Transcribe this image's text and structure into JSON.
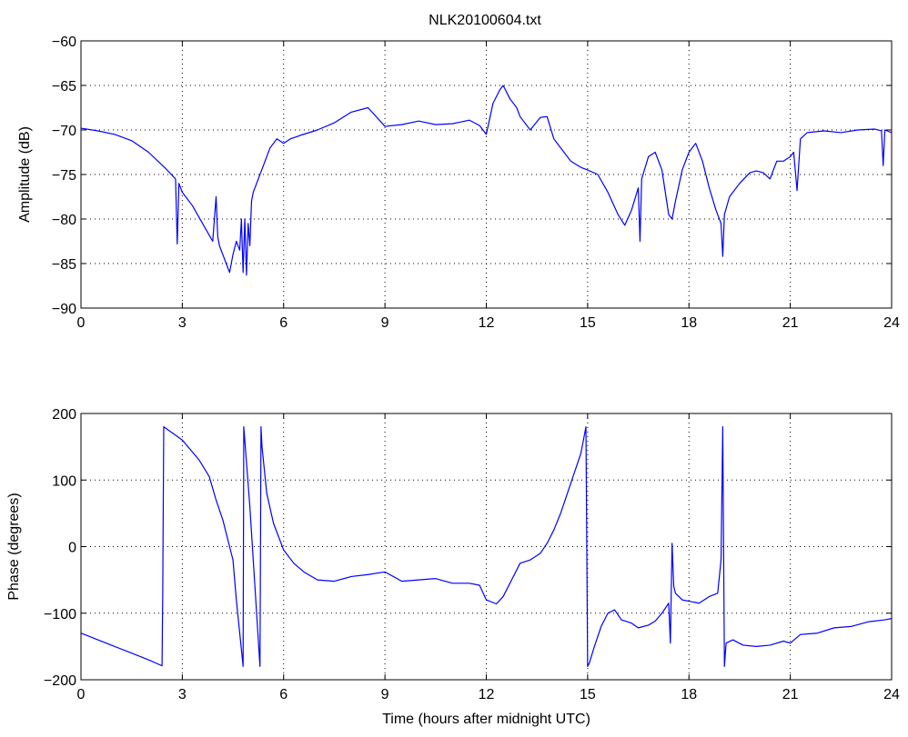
{
  "window": {
    "title": "NLK20100604.txt"
  },
  "chart_data": [
    {
      "type": "line",
      "title": "NLK20100604.txt",
      "xlabel": "",
      "ylabel": "Amplitude (dB)",
      "xlim": [
        0,
        24
      ],
      "ylim": [
        -90,
        -60
      ],
      "xticks": [
        0,
        3,
        6,
        9,
        12,
        15,
        18,
        21,
        24
      ],
      "yticks": [
        -90,
        -85,
        -80,
        -75,
        -70,
        -65,
        -60
      ],
      "grid": true,
      "line_color": "#0000ff",
      "series": [
        {
          "x": [
            0,
            0.5,
            1,
            1.5,
            2,
            2.5,
            2.8,
            2.85,
            2.9,
            3.0,
            3.3,
            3.6,
            3.9,
            4.0,
            4.05,
            4.1,
            4.2,
            4.3,
            4.4,
            4.5,
            4.6,
            4.7,
            4.75,
            4.8,
            4.85,
            4.9,
            4.95,
            5.0,
            5.05,
            5.1,
            5.2,
            5.4,
            5.6,
            5.8,
            6.0,
            6.2,
            6.5,
            7.0,
            7.5,
            8.0,
            8.5,
            9.0,
            9.5,
            10.0,
            10.5,
            11.0,
            11.5,
            11.8,
            12.0,
            12.2,
            12.4,
            12.5,
            12.7,
            12.9,
            13.0,
            13.3,
            13.6,
            13.8,
            14.0,
            14.2,
            14.5,
            14.8,
            15.0,
            15.3,
            15.6,
            15.9,
            16.1,
            16.3,
            16.5,
            16.55,
            16.6,
            16.8,
            17.0,
            17.2,
            17.4,
            17.5,
            17.6,
            17.8,
            18.0,
            18.2,
            18.4,
            18.6,
            18.8,
            18.95,
            19.0,
            19.05,
            19.2,
            19.5,
            19.8,
            20.0,
            20.2,
            20.4,
            20.6,
            20.8,
            21.0,
            21.1,
            21.2,
            21.3,
            21.5,
            22.0,
            22.5,
            23.0,
            23.5,
            23.7,
            23.75,
            23.8,
            24.0
          ],
          "y": [
            -69.8,
            -70.1,
            -70.5,
            -71.2,
            -72.5,
            -74.3,
            -75.5,
            -82.8,
            -76.0,
            -77.0,
            -78.5,
            -80.5,
            -82.5,
            -77.5,
            -82.0,
            -83.0,
            -84.0,
            -85.0,
            -86.0,
            -84.0,
            -82.5,
            -83.5,
            -80.0,
            -86.0,
            -80.0,
            -86.3,
            -80.5,
            -83.0,
            -78.0,
            -77.0,
            -76.0,
            -74.0,
            -72.0,
            -71.0,
            -71.5,
            -71.0,
            -70.6,
            -70.0,
            -69.2,
            -68.0,
            -67.5,
            -69.6,
            -69.4,
            -69.0,
            -69.4,
            -69.3,
            -68.9,
            -69.5,
            -70.5,
            -67.0,
            -65.5,
            -65.0,
            -66.5,
            -67.5,
            -68.5,
            -70.0,
            -68.6,
            -68.5,
            -71.0,
            -72.0,
            -73.5,
            -74.2,
            -74.5,
            -75.0,
            -77.0,
            -79.5,
            -80.7,
            -79.0,
            -76.5,
            -82.5,
            -75.5,
            -73.0,
            -72.5,
            -74.5,
            -79.5,
            -80.0,
            -78.0,
            -74.5,
            -72.5,
            -71.5,
            -73.5,
            -76.5,
            -79.0,
            -80.5,
            -84.2,
            -79.5,
            -77.5,
            -76.0,
            -74.8,
            -74.6,
            -74.8,
            -75.5,
            -73.5,
            -73.5,
            -73.0,
            -72.5,
            -76.8,
            -71.0,
            -70.3,
            -70.1,
            -70.3,
            -70.0,
            -69.9,
            -70.1,
            -74.0,
            -70.0,
            -70.3
          ]
        }
      ]
    },
    {
      "type": "line",
      "title": "",
      "xlabel": "Time (hours after midnight UTC)",
      "ylabel": "Phase (degrees)",
      "xlim": [
        0,
        24
      ],
      "ylim": [
        -200,
        200
      ],
      "xticks": [
        0,
        3,
        6,
        9,
        12,
        15,
        18,
        21,
        24
      ],
      "yticks": [
        -200,
        -100,
        0,
        100,
        200
      ],
      "grid": true,
      "line_color": "#0000ff",
      "series": [
        {
          "x": [
            0,
            0.5,
            1.0,
            1.5,
            2.0,
            2.4,
            2.42,
            2.45,
            3.0,
            3.5,
            3.8,
            4.0,
            4.2,
            4.4,
            4.5,
            4.6,
            4.7,
            4.8,
            4.82,
            4.85,
            5.0,
            5.1,
            5.2,
            5.3,
            5.33,
            5.36,
            5.5,
            5.7,
            6.0,
            6.3,
            6.6,
            7.0,
            7.5,
            8.0,
            8.5,
            9.0,
            9.5,
            10.0,
            10.5,
            11.0,
            11.5,
            11.8,
            12.0,
            12.3,
            12.5,
            12.8,
            13.0,
            13.3,
            13.6,
            13.8,
            14.0,
            14.2,
            14.4,
            14.6,
            14.8,
            14.95,
            15.0,
            15.05,
            15.2,
            15.4,
            15.6,
            15.8,
            16.0,
            16.3,
            16.5,
            16.8,
            17.0,
            17.2,
            17.4,
            17.45,
            17.5,
            17.55,
            17.6,
            17.8,
            18.0,
            18.3,
            18.6,
            18.85,
            18.95,
            19.0,
            19.05,
            19.1,
            19.3,
            19.6,
            20.0,
            20.4,
            20.8,
            21.0,
            21.3,
            21.8,
            22.3,
            22.8,
            23.3,
            23.8,
            24.0
          ],
          "y": [
            -130,
            -140,
            -150,
            -160,
            -170,
            -179,
            -75,
            180,
            160,
            130,
            105,
            70,
            40,
            0,
            -20,
            -80,
            -130,
            -180,
            180,
            160,
            60,
            -20,
            -100,
            -180,
            180,
            150,
            80,
            35,
            -5,
            -25,
            -38,
            -50,
            -52,
            -45,
            -42,
            -38,
            -52,
            -50,
            -48,
            -55,
            -55,
            -58,
            -80,
            -86,
            -75,
            -45,
            -25,
            -20,
            -10,
            5,
            25,
            50,
            80,
            110,
            140,
            180,
            -180,
            -175,
            -150,
            -120,
            -100,
            -95,
            -110,
            -115,
            -122,
            -118,
            -112,
            -100,
            -85,
            -145,
            5,
            -60,
            -70,
            -80,
            -82,
            -85,
            -75,
            -70,
            -20,
            180,
            -180,
            -145,
            -140,
            -148,
            -150,
            -148,
            -142,
            -145,
            -132,
            -130,
            -122,
            -120,
            -113,
            -110,
            -108
          ]
        }
      ]
    }
  ]
}
